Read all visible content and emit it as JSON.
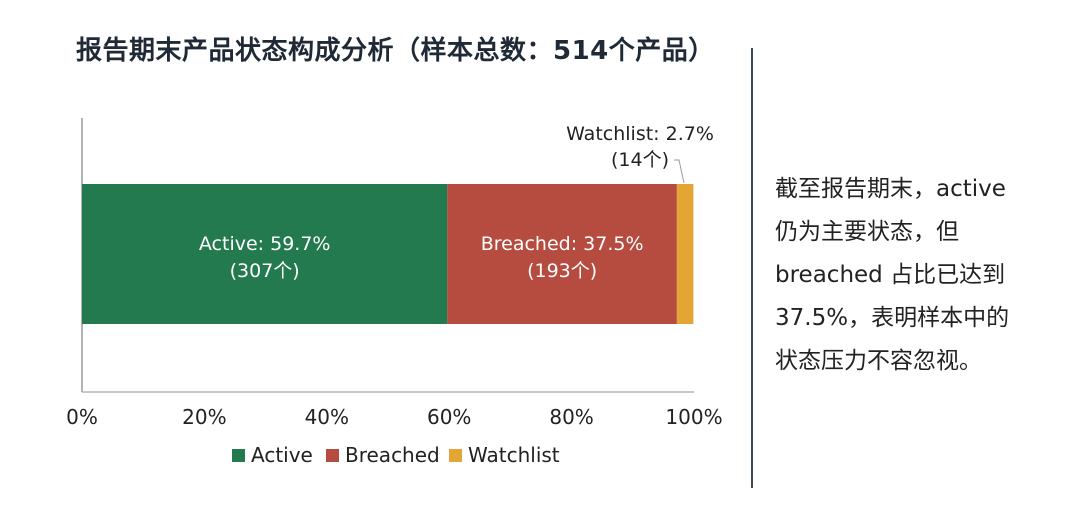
{
  "chart_data": {
    "type": "bar",
    "orientation": "horizontal",
    "stacked": true,
    "title": "报告期末产品状态构成分析（样本总数：514个产品）",
    "xlim": [
      0,
      100
    ],
    "xticks": [
      "0%",
      "20%",
      "40%",
      "60%",
      "80%",
      "100%"
    ],
    "series": [
      {
        "name": "Active",
        "value": 59.7,
        "count_label": "(307个)",
        "label": "Active: 59.7%",
        "color": "#237a4e",
        "label_color": "#ffffff"
      },
      {
        "name": "Breached",
        "value": 37.5,
        "count_label": "(193个)",
        "label": "Breached: 37.5%",
        "color": "#b64b3f",
        "label_color": "#ffffff"
      },
      {
        "name": "Watchlist",
        "value": 2.7,
        "count_label": "(14个)",
        "label": "Watchlist: 2.7%",
        "color": "#e3a534",
        "label_color": "#222222"
      }
    ],
    "legend": [
      "Active",
      "Breached",
      "Watchlist"
    ],
    "legend_position": "bottom",
    "grid": false
  },
  "note": {
    "lines": [
      "截至报告期末，active",
      "仍为主要状态，但",
      "breached 占比已达到",
      "37.5%，表明样本中的",
      "状态压力不容忽视。"
    ]
  }
}
